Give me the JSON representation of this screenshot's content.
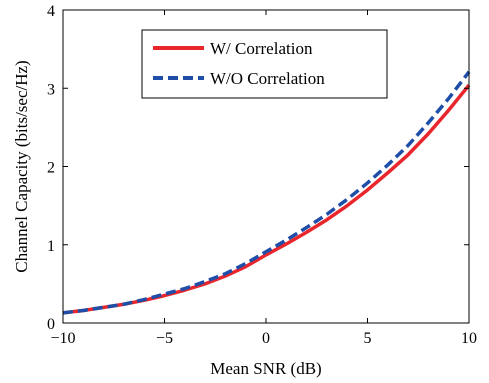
{
  "chart_data": {
    "type": "line",
    "xlabel": "Mean SNR (dB)",
    "ylabel": "Channel Capacity (bits/sec/Hz)",
    "xlim": [
      -10,
      10
    ],
    "ylim": [
      0,
      4
    ],
    "xticks": [
      -10,
      -5,
      0,
      5,
      10
    ],
    "yticks": [
      0,
      1,
      2,
      3,
      4
    ],
    "xtick_labels": [
      "−10",
      "−5",
      "0",
      "5",
      "10"
    ],
    "ytick_labels": [
      "0",
      "1",
      "2",
      "3",
      "4"
    ],
    "grid": false,
    "legend_position": "top-center",
    "series": [
      {
        "name": "W/ Correlation",
        "color": "#e8262c",
        "style": "solid",
        "x": [
          -10,
          -9,
          -8,
          -7,
          -6,
          -5,
          -4,
          -3,
          -2,
          -1,
          0,
          1,
          2,
          3,
          4,
          5,
          6,
          7,
          8,
          9,
          10
        ],
        "y": [
          0.13,
          0.16,
          0.2,
          0.24,
          0.29,
          0.35,
          0.42,
          0.5,
          0.6,
          0.72,
          0.87,
          1.01,
          1.16,
          1.32,
          1.5,
          1.7,
          1.92,
          2.15,
          2.42,
          2.72,
          3.04
        ]
      },
      {
        "name": "W/O Correlation",
        "color": "#1f4ea8",
        "style": "dashed",
        "x": [
          -10,
          -9,
          -8,
          -7,
          -6,
          -5,
          -4,
          -3,
          -2,
          -1,
          0,
          1,
          2,
          3,
          4,
          5,
          6,
          7,
          8,
          9,
          10
        ],
        "y": [
          0.13,
          0.16,
          0.2,
          0.24,
          0.3,
          0.37,
          0.44,
          0.53,
          0.63,
          0.76,
          0.91,
          1.06,
          1.22,
          1.39,
          1.58,
          1.79,
          2.02,
          2.27,
          2.56,
          2.87,
          3.21
        ]
      }
    ]
  }
}
